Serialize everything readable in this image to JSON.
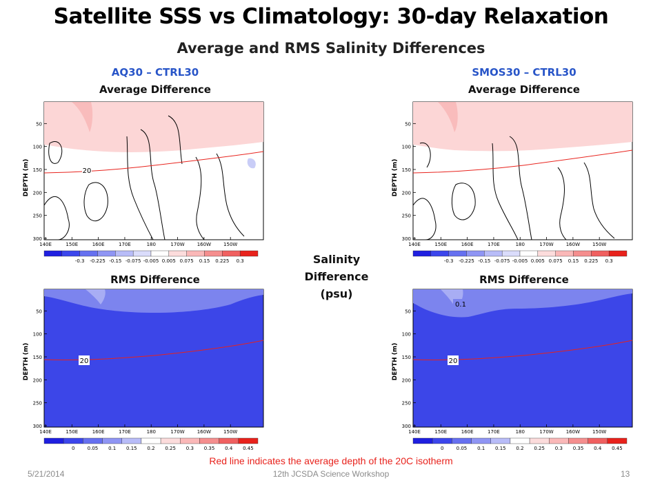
{
  "slide": {
    "title": "Satellite SSS vs Climatology:  30-day Relaxation",
    "subtitle": "Average and RMS Salinity Differences",
    "left_header": "AQ30 – CTRL30",
    "right_header": "SMOS30 – CTRL30",
    "avg_label": "Average Difference",
    "rms_label": "RMS Difference",
    "colorbar_title_lines": [
      "Salinity",
      "Difference",
      "(psu)"
    ],
    "note": "Red line indicates the average depth of the 20C isotherm",
    "footer_date": "5/21/2014",
    "footer_center": "12th JCSDA Science Workshop",
    "footer_page": "13"
  },
  "plot_common": {
    "y_axis_label": "DEPTH (m)",
    "y_ticks": [
      "50",
      "100",
      "150",
      "200",
      "250",
      "300"
    ],
    "x_ticks": [
      "140E",
      "150E",
      "160E",
      "170E",
      "180",
      "170W",
      "160W",
      "150W"
    ],
    "isotherm_label": "20",
    "colors": {
      "rms_fill": "#3c46e8",
      "rms_light": "#8b91f0",
      "pos_light": "#fcd6d6",
      "neg_light": "#c9cdf7",
      "isotherm": "#e8221c"
    }
  },
  "avg_colorbar": {
    "labels": [
      "-0.3",
      "-0.225",
      "-0.15",
      "-0.075",
      "-0.005",
      "0.005",
      "0.075",
      "0.15",
      "0.225",
      "0.3"
    ],
    "colors": [
      "#1f1fe0",
      "#3c46ec",
      "#6670f0",
      "#8f95f4",
      "#b8bcf8",
      "#dadcfb",
      "#ffffff",
      "#fcdcdc",
      "#fab8b8",
      "#f58e8e",
      "#f06060",
      "#e8221c"
    ]
  },
  "rms_colorbar": {
    "labels": [
      "0",
      "0.05",
      "0.1",
      "0.15",
      "0.2",
      "0.25",
      "0.3",
      "0.35",
      "0.4",
      "0.45"
    ],
    "colors": [
      "#1f1fe0",
      "#3c46ec",
      "#6670f0",
      "#8f95f4",
      "#b8bcf8",
      "#ffffff",
      "#fcdcdc",
      "#fab8b8",
      "#f58e8e",
      "#f06060",
      "#e8221c"
    ]
  },
  "right_rms_contour_label": "0.1"
}
